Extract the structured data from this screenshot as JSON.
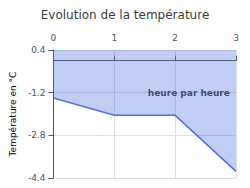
{
  "chart_data": {
    "type": "line",
    "title": "Evolution de la température",
    "ylabel": "Température en °C",
    "x": [
      0,
      1,
      2,
      3
    ],
    "values": [
      -1.4,
      -2.05,
      -2.05,
      -4.15
    ],
    "xlim": [
      0,
      3
    ],
    "xticks": [
      0,
      1,
      2,
      3
    ],
    "ylim": [
      -4.4,
      0.4
    ],
    "yticks": [
      0.4,
      -1.2,
      -2.8,
      -4.4
    ],
    "grid": true,
    "annotations": [
      {
        "text": "heure par heure",
        "x": 1.55,
        "y": -1.05
      }
    ]
  }
}
